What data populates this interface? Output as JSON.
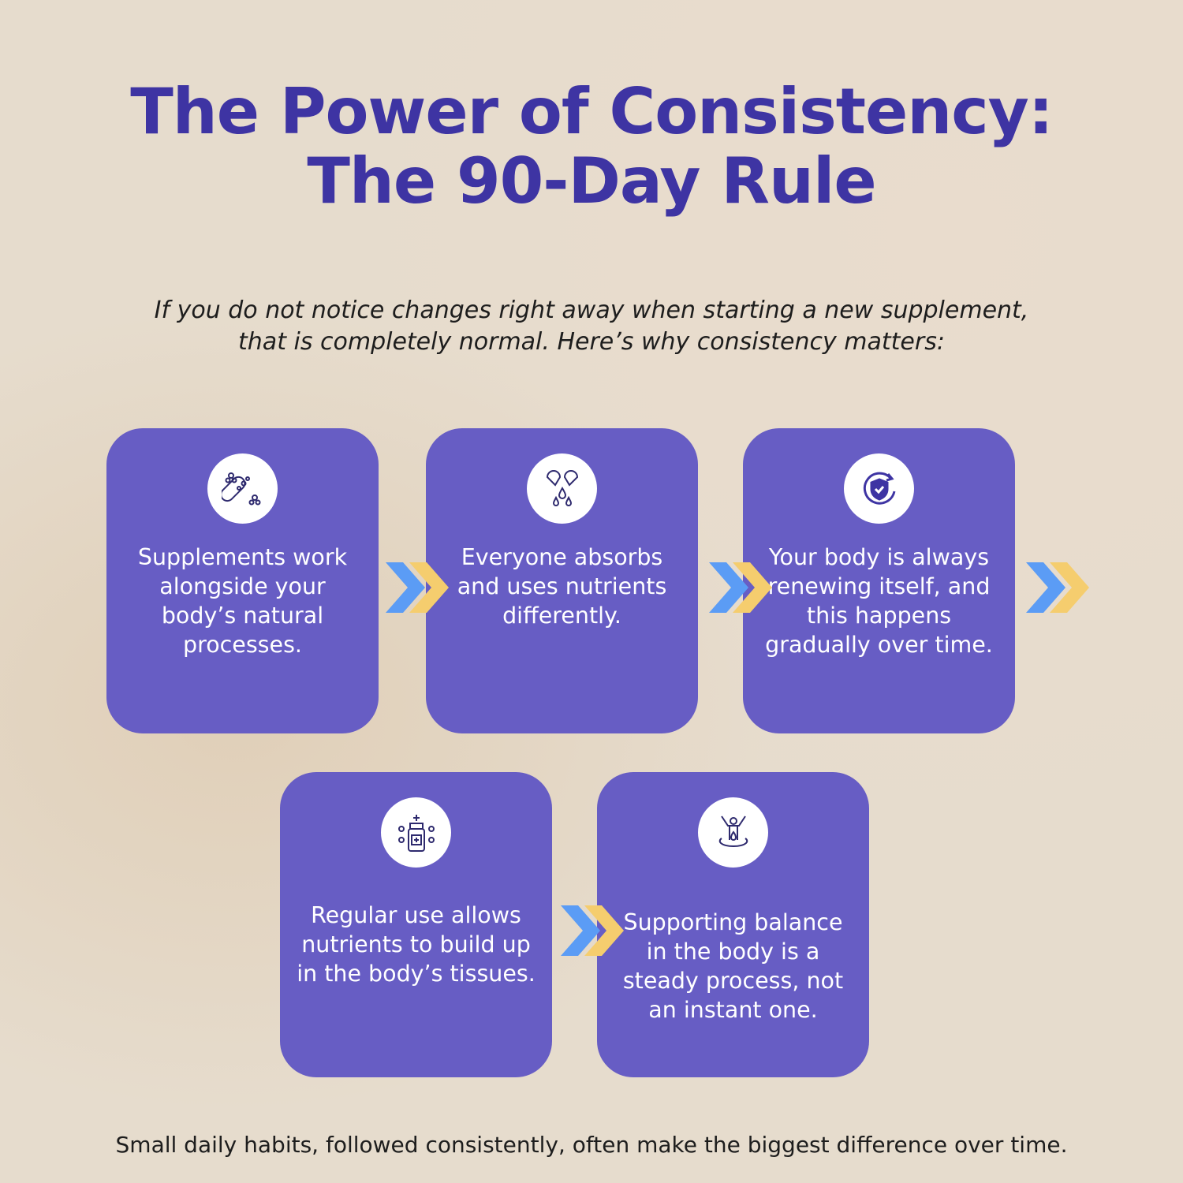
{
  "title": {
    "line1": "The Power of Consistency:",
    "line2": "The 90-Day Rule"
  },
  "subtitle": {
    "line1": "If you do not notice changes right away when starting a new supplement,",
    "line2": "that is completely normal. Here’s why consistency matters:"
  },
  "colors": {
    "card": "#675dc4",
    "title": "#3e34a3",
    "chevron_blue": "#5b9cf5",
    "chevron_yellow": "#f5cd6e"
  },
  "cards": [
    {
      "icon": "capsule-molecules-icon",
      "text": "Supplements work alongside your body’s natural processes."
    },
    {
      "icon": "capsule-drops-icon",
      "text": "Everyone absorbs and uses nutrients differently."
    },
    {
      "icon": "shield-renew-icon",
      "text": "Your body is always renewing itself, and this happens gradually over time."
    },
    {
      "icon": "supplement-bottle-icon",
      "text": "Regular use allows nutrients to build up in the body’s tissues."
    },
    {
      "icon": "balanced-person-icon",
      "text": "Supporting balance in the body is a steady process, not an instant one."
    }
  ],
  "footer": "Small daily habits, followed consistently, often make the biggest difference over time."
}
